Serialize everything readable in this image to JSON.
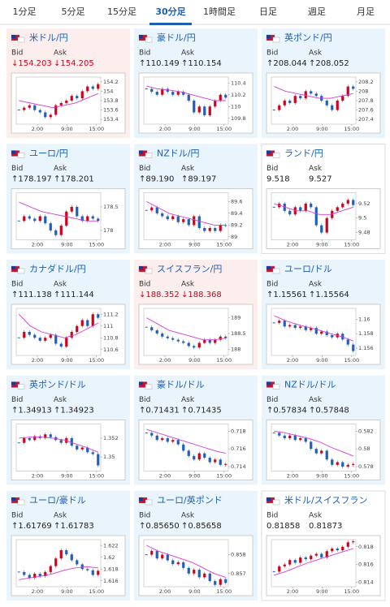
{
  "tabs": [
    "1分足",
    "5分足",
    "15分足",
    "30分足",
    "1時間足",
    "日足",
    "週足",
    "月足"
  ],
  "active_tab": 3,
  "bid_label": "Bid",
  "ask_label": "Ask",
  "xticks": [
    "2:00",
    "9:00",
    "15:00"
  ],
  "cards": [
    {
      "name": "米ドル/円",
      "trend": "down",
      "bid": "↓154.203",
      "ask": "↓154.205",
      "chart": {
        "ylim": [
          153.3,
          154.3
        ],
        "yticks": [
          154.2,
          154,
          153.8,
          153.6,
          153.4
        ],
        "close": [
          153.6,
          153.65,
          153.7,
          153.6,
          153.55,
          153.45,
          153.5,
          153.7,
          153.75,
          153.8,
          153.9,
          153.85,
          154.0,
          154.1,
          154.05,
          154.15
        ],
        "ma": [
          153.8,
          153.75,
          153.7,
          153.65,
          153.7,
          153.75,
          153.85,
          153.95
        ]
      }
    },
    {
      "name": "豪ドル/円",
      "trend": "up",
      "bid": "↑110.149",
      "ask": "↑110.154",
      "chart": {
        "ylim": [
          109.7,
          110.5
        ],
        "yticks": [
          110.4,
          110.2,
          110,
          109.8
        ],
        "close": [
          110.3,
          110.25,
          110.2,
          110.3,
          110.25,
          110.2,
          110.25,
          110.2,
          110.1,
          109.9,
          110.0,
          109.85,
          110.0,
          110.1,
          110.2,
          110.15
        ],
        "ma": [
          110.35,
          110.3,
          110.28,
          110.25,
          110.2,
          110.15,
          110.1,
          110.1
        ]
      }
    },
    {
      "name": "英ポンド/円",
      "trend": "up",
      "bid": "↑208.044",
      "ask": "↑208.052",
      "chart": {
        "ylim": [
          207.3,
          208.3
        ],
        "yticks": [
          208.2,
          208,
          207.8,
          207.6,
          207.4
        ],
        "close": [
          207.6,
          207.7,
          207.8,
          207.75,
          207.9,
          207.85,
          208.0,
          207.95,
          207.9,
          207.8,
          207.7,
          207.6,
          207.8,
          207.9,
          208.1,
          208.05
        ],
        "ma": [
          208.1,
          208.0,
          207.95,
          207.9,
          207.85,
          207.85,
          207.9,
          207.95
        ]
      }
    },
    {
      "name": "ユーロ/円",
      "trend": "up",
      "bid": "↑178.197",
      "ask": "↑178.201",
      "chart": {
        "ylim": [
          177.8,
          178.8
        ],
        "yticks": [
          178.5,
          178
        ],
        "close": [
          178.2,
          178.3,
          178.25,
          178.2,
          178.3,
          178.15,
          178.0,
          177.9,
          178.1,
          178.4,
          178.5,
          178.3,
          178.2,
          178.3,
          178.25,
          178.2
        ],
        "ma": [
          178.6,
          178.5,
          178.4,
          178.35,
          178.3,
          178.25,
          178.2,
          178.2
        ]
      }
    },
    {
      "name": "NZドル/円",
      "trend": "up",
      "bid": "↑89.190",
      "ask": "↑89.197",
      "chart": {
        "ylim": [
          88.95,
          89.75
        ],
        "yticks": [
          89.6,
          89.4,
          89.2,
          89
        ],
        "close": [
          89.45,
          89.5,
          89.4,
          89.35,
          89.3,
          89.35,
          89.25,
          89.3,
          89.2,
          89.35,
          89.15,
          89.1,
          89.15,
          89.1,
          89.2,
          89.19
        ],
        "ma": [
          89.6,
          89.5,
          89.4,
          89.35,
          89.3,
          89.25,
          89.2,
          89.2
        ]
      }
    },
    {
      "name": "ランド/円",
      "trend": "none",
      "bid": "9.518",
      "ask": "9.527",
      "chart": {
        "ylim": [
          9.47,
          9.535
        ],
        "yticks": [
          9.52,
          9.5,
          9.48
        ],
        "close": [
          9.515,
          9.52,
          9.51,
          9.505,
          9.515,
          9.51,
          9.52,
          9.515,
          9.49,
          9.48,
          9.5,
          9.51,
          9.515,
          9.52,
          9.525,
          9.518
        ],
        "ma": [
          9.52,
          9.515,
          9.51,
          9.51,
          9.505,
          9.505,
          9.51,
          9.515
        ]
      }
    },
    {
      "name": "カナダドル/円",
      "trend": "up",
      "bid": "↑111.138",
      "ask": "↑111.144",
      "chart": {
        "ylim": [
          110.5,
          111.3
        ],
        "yticks": [
          111.2,
          111,
          110.8,
          110.6
        ],
        "close": [
          110.8,
          110.9,
          110.85,
          110.8,
          110.75,
          110.8,
          110.85,
          110.7,
          110.65,
          110.8,
          110.9,
          111.0,
          111.1,
          111.0,
          111.2,
          111.14
        ],
        "ma": [
          111.2,
          111.0,
          110.9,
          110.85,
          110.8,
          110.85,
          110.95,
          111.05
        ]
      }
    },
    {
      "name": "スイスフラン/円",
      "trend": "down",
      "bid": "↓188.352",
      "ask": "↓188.368",
      "chart": {
        "ylim": [
          187.8,
          189.3
        ],
        "yticks": [
          189,
          188.5,
          188
        ],
        "close": [
          188.7,
          188.6,
          188.5,
          188.4,
          188.35,
          188.3,
          188.25,
          188.2,
          188.1,
          188.05,
          188.2,
          188.3,
          188.2,
          188.3,
          188.4,
          188.35
        ],
        "ma": [
          189.0,
          188.8,
          188.6,
          188.5,
          188.4,
          188.3,
          188.3,
          188.35
        ]
      }
    },
    {
      "name": "ユーロ/ドル",
      "trend": "up",
      "bid": "↑1.15561",
      "ask": "↑1.15564",
      "chart": {
        "ylim": [
          1.155,
          1.1615
        ],
        "yticks": [
          1.16,
          1.158,
          1.156
        ],
        "close": [
          1.1595,
          1.1598,
          1.159,
          1.1592,
          1.1588,
          1.159,
          1.1585,
          1.1588,
          1.158,
          1.1583,
          1.1578,
          1.1575,
          1.158,
          1.1572,
          1.1565,
          1.1556
        ],
        "ma": [
          1.1605,
          1.1598,
          1.1593,
          1.1589,
          1.1585,
          1.158,
          1.1576,
          1.157
        ]
      }
    },
    {
      "name": "英ポンド/ドル",
      "trend": "up",
      "bid": "↑1.34913",
      "ask": "↑1.34923",
      "chart": {
        "ylim": [
          1.3485,
          1.3535
        ],
        "yticks": [
          1.352,
          1.35
        ],
        "close": [
          1.3515,
          1.352,
          1.3518,
          1.3522,
          1.352,
          1.3524,
          1.3521,
          1.3518,
          1.3515,
          1.352,
          1.3512,
          1.3508,
          1.351,
          1.3505,
          1.3503,
          1.3491
        ],
        "ma": [
          1.352,
          1.3521,
          1.3521,
          1.352,
          1.3518,
          1.3514,
          1.351,
          1.3505
        ]
      }
    },
    {
      "name": "豪ドル/ドル",
      "trend": "up",
      "bid": "↑0.71431",
      "ask": "↑0.71435",
      "chart": {
        "ylim": [
          0.7135,
          0.7188
        ],
        "yticks": [
          0.718,
          0.716,
          0.714
        ],
        "close": [
          0.7178,
          0.7175,
          0.717,
          0.7172,
          0.7168,
          0.717,
          0.7165,
          0.7158,
          0.7152,
          0.7148,
          0.7155,
          0.715,
          0.7145,
          0.7148,
          0.7142,
          0.7143
        ],
        "ma": [
          0.7182,
          0.7178,
          0.7174,
          0.717,
          0.7166,
          0.7162,
          0.7158,
          0.7155
        ]
      }
    },
    {
      "name": "NZドル/ドル",
      "trend": "up",
      "bid": "↑0.57834",
      "ask": "↑0.57848",
      "chart": {
        "ylim": [
          0.5775,
          0.5828
        ],
        "yticks": [
          0.582,
          0.58,
          0.578
        ],
        "close": [
          0.5818,
          0.5815,
          0.5812,
          0.5815,
          0.581,
          0.5812,
          0.5808,
          0.58,
          0.5795,
          0.5798,
          0.5788,
          0.5782,
          0.5785,
          0.578,
          0.5782,
          0.5783
        ],
        "ma": [
          0.582,
          0.5818,
          0.5815,
          0.5812,
          0.5808,
          0.5802,
          0.5797,
          0.5792
        ]
      }
    },
    {
      "name": "ユーロ/豪ドル",
      "trend": "up",
      "bid": "↑1.61769",
      "ask": "↑1.61783",
      "chart": {
        "ylim": [
          1.615,
          1.623
        ],
        "yticks": [
          1.622,
          1.62,
          1.618,
          1.616
        ],
        "close": [
          1.6175,
          1.617,
          1.6165,
          1.6172,
          1.6168,
          1.6175,
          1.6185,
          1.6198,
          1.6212,
          1.6205,
          1.6195,
          1.6188,
          1.618,
          1.6178,
          1.617,
          1.6177
        ],
        "ma": [
          1.6162,
          1.6165,
          1.6168,
          1.6172,
          1.6178,
          1.6182,
          1.6184,
          1.6182
        ]
      }
    },
    {
      "name": "ユーロ/英ポンド",
      "trend": "up",
      "bid": "↑0.85650",
      "ask": "↑0.85658",
      "chart": {
        "ylim": [
          0.8563,
          0.8588
        ],
        "yticks": [
          0.858,
          0.857
        ],
        "close": [
          0.858,
          0.8582,
          0.8578,
          0.858,
          0.8577,
          0.8575,
          0.8576,
          0.8573,
          0.857,
          0.8572,
          0.8568,
          0.857,
          0.8566,
          0.8564,
          0.8567,
          0.8565
        ],
        "ma": [
          0.8585,
          0.8582,
          0.858,
          0.8578,
          0.8576,
          0.8573,
          0.857,
          0.8568
        ]
      }
    },
    {
      "name": "米ドル/スイスフラン",
      "trend": "none",
      "bid": "0.81858",
      "ask": "0.81873",
      "chart": {
        "ylim": [
          0.8135,
          0.8188
        ],
        "yticks": [
          0.818,
          0.816,
          0.814
        ],
        "close": [
          0.8152,
          0.8158,
          0.816,
          0.8165,
          0.8162,
          0.8168,
          0.8166,
          0.817,
          0.8172,
          0.8168,
          0.8175,
          0.8178,
          0.8176,
          0.818,
          0.8185,
          0.8186
        ],
        "ma": [
          0.8148,
          0.8152,
          0.8157,
          0.8162,
          0.8166,
          0.817,
          0.8174,
          0.8178
        ]
      }
    }
  ]
}
